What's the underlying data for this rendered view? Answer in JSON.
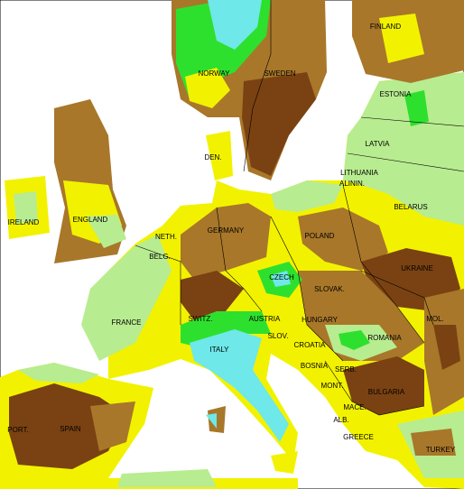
{
  "labels": [
    "FINLAND",
    "NORWAY",
    "SWEDEN",
    "ESTONIA",
    "LATVIA",
    "LITHUANIA",
    "ALININ.",
    "DEN.",
    "IRELAND",
    "ENGLAND",
    "BELARUS",
    "GERMANY",
    "POLAND",
    "NETH.",
    "BELG.",
    "CZECH",
    "UKRAINE",
    "SLOVAK.",
    "FRANCE",
    "SWITZ.",
    "AUSTRIA",
    "HUNGARY",
    "MOL.",
    "ROMANIA",
    "SLOV.",
    "CROATIA",
    "ITALY",
    "BOSNIA",
    "SERB.",
    "MONT.",
    "BULGARIA",
    "PORT.",
    "SPAIN",
    "MACE.",
    "ALB.",
    "GREECE",
    "TURKEY"
  ]
}
